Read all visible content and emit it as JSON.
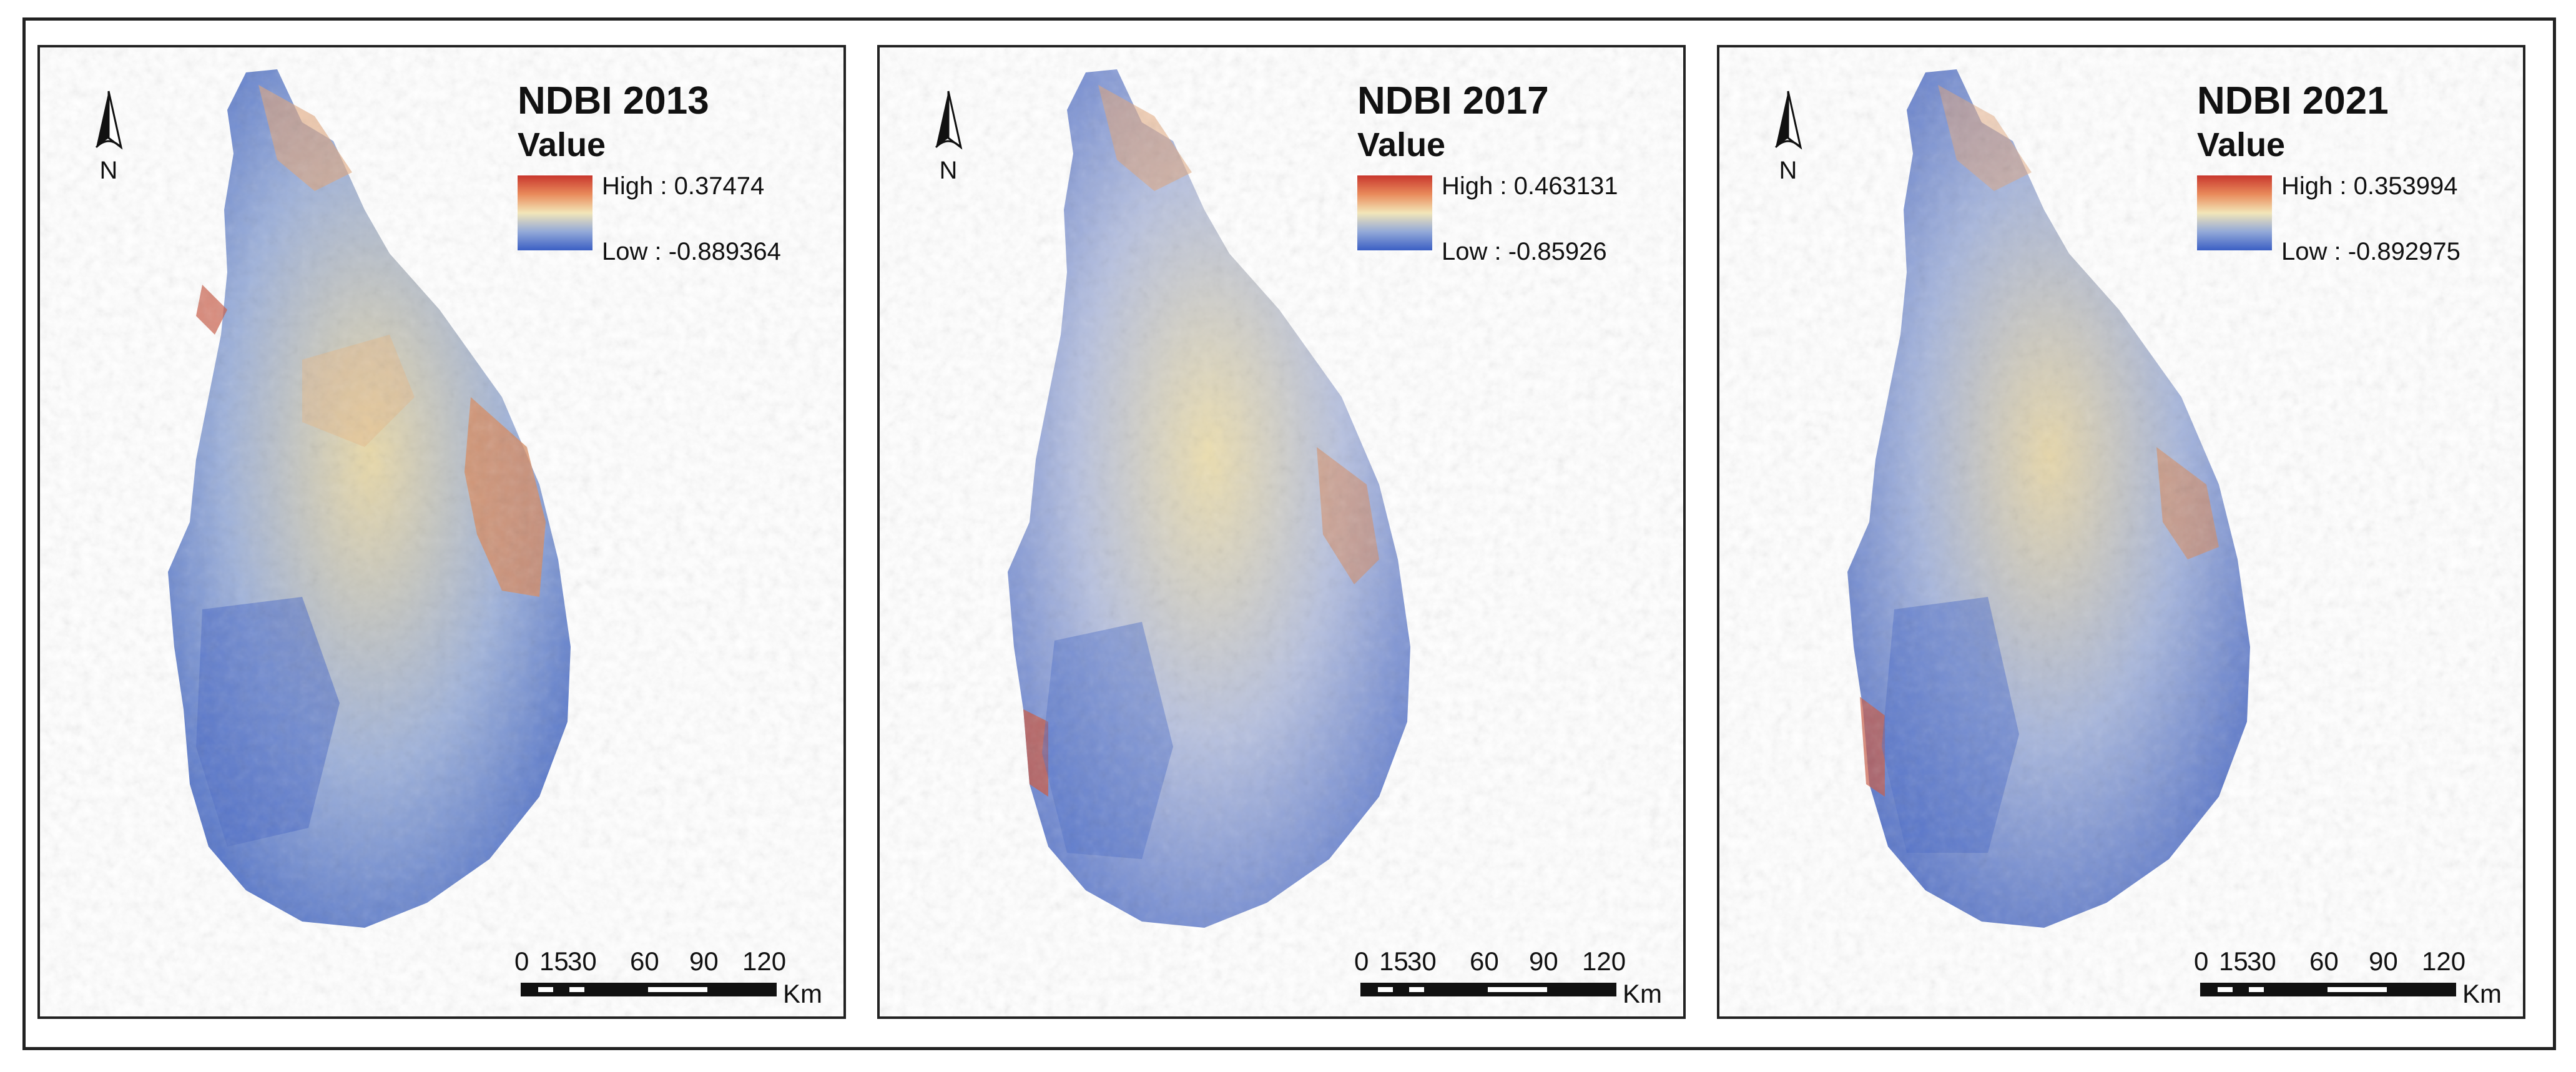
{
  "figure": {
    "panels": [
      {
        "title": "NDBI 2013",
        "value_label": "Value",
        "legend_high": "High : 0.37474",
        "legend_low": "Low : -0.889364",
        "north_label": "N",
        "scale_ticks": [
          "0",
          "15",
          "30",
          "60",
          "90",
          "120"
        ],
        "scale_unit": "Km"
      },
      {
        "title": "NDBI 2017",
        "value_label": "Value",
        "legend_high": "High : 0.463131",
        "legend_low": "Low : -0.85926",
        "north_label": "N",
        "scale_ticks": [
          "0",
          "15",
          "30",
          "60",
          "90",
          "120"
        ],
        "scale_unit": "Km"
      },
      {
        "title": "NDBI 2021",
        "value_label": "Value",
        "legend_high": "High : 0.353994",
        "legend_low": "Low : -0.892975",
        "north_label": "N",
        "scale_ticks": [
          "0",
          "15",
          "30",
          "60",
          "90",
          "120"
        ],
        "scale_unit": "Km"
      }
    ],
    "colors": {
      "high": "#c8372d",
      "mid": "#f2e6b8",
      "low": "#3b5fc4"
    }
  }
}
